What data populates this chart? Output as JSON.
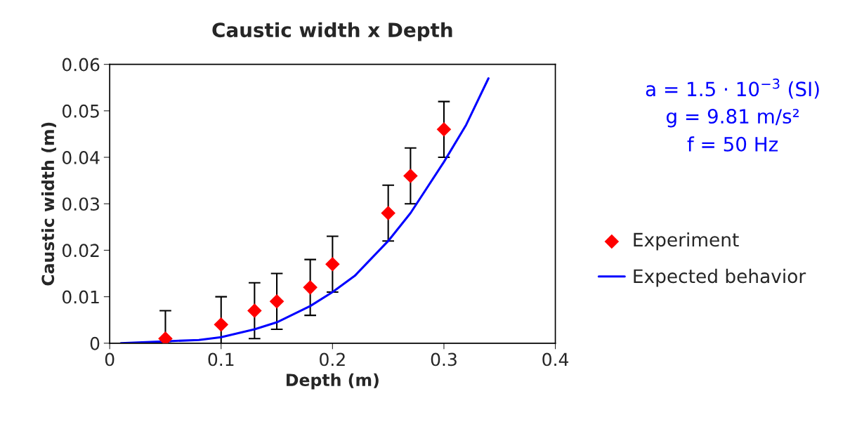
{
  "chart_data": {
    "type": "scatter",
    "title": "Caustic width x Depth",
    "xlabel": "Depth (m)",
    "ylabel": "Caustic width (m)",
    "xlim": [
      0,
      0.4
    ],
    "xticks": [
      0,
      0.1,
      0.2,
      0.3,
      0.4
    ],
    "ylim": [
      0,
      0.06
    ],
    "yticks": [
      0,
      0.01,
      0.02,
      0.03,
      0.04,
      0.05,
      0.06
    ],
    "grid": false,
    "legend": "right",
    "annotations": [
      "a = 1.5 · 10$^{−3}$ (SI)",
      "g = 9.81 m/s²",
      "f = 50 Hz"
    ],
    "series": [
      {
        "name": "Experiment",
        "color": "#ff0000",
        "marker": "diamond",
        "x": [
          0.05,
          0.1,
          0.13,
          0.15,
          0.18,
          0.2,
          0.25,
          0.27,
          0.3
        ],
        "values": [
          0.001,
          0.004,
          0.007,
          0.009,
          0.012,
          0.017,
          0.028,
          0.036,
          0.046
        ],
        "errors": [
          [
            0,
            0.007
          ],
          0.006,
          0.006,
          0.006,
          0.006,
          0.006,
          0.006,
          0.006,
          0.006
        ]
      },
      {
        "name": "Expected behavior",
        "type": "line",
        "color": "#0000ff",
        "marker": "none",
        "x": [
          0.01,
          0.08,
          0.1,
          0.13,
          0.15,
          0.18,
          0.2,
          0.22,
          0.25,
          0.27,
          0.3,
          0.32,
          0.34
        ],
        "values": [
          0,
          0.0007,
          0.0013,
          0.003,
          0.0045,
          0.008,
          0.011,
          0.0145,
          0.022,
          0.028,
          0.039,
          0.047,
          0.057
        ]
      }
    ]
  }
}
